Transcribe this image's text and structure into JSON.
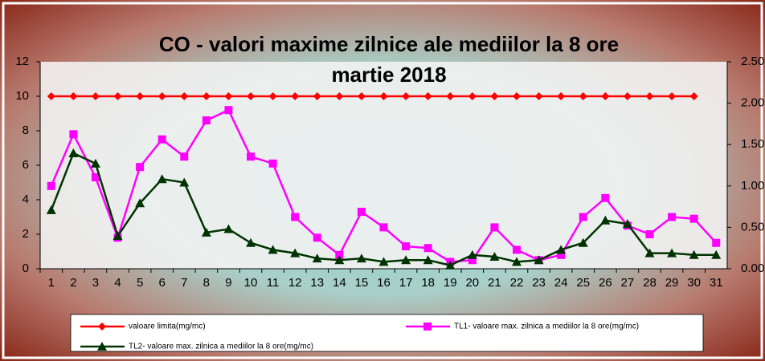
{
  "chart_data": {
    "type": "line",
    "title": "CO - valori maxime zilnice ale mediilor la 8 ore",
    "subtitle": "martie 2018",
    "categories": [
      "1",
      "2",
      "3",
      "4",
      "5",
      "6",
      "7",
      "8",
      "9",
      "10",
      "11",
      "12",
      "13",
      "14",
      "15",
      "16",
      "17",
      "18",
      "19",
      "20",
      "21",
      "22",
      "23",
      "24",
      "25",
      "26",
      "27",
      "28",
      "29",
      "30",
      "31"
    ],
    "series": [
      {
        "name": "valoare limita(mg/mc)",
        "color": "#ff0000",
        "marker": "diamond",
        "values": [
          10,
          10,
          10,
          10,
          10,
          10,
          10,
          10,
          10,
          10,
          10,
          10,
          10,
          10,
          10,
          10,
          10,
          10,
          10,
          10,
          10,
          10,
          10,
          10,
          10,
          10,
          10,
          10,
          10,
          10,
          null
        ]
      },
      {
        "name": "TL1- valoare max. zilnica a mediilor la 8 ore(mg/mc)",
        "color": "#ff00ff",
        "marker": "square",
        "values": [
          4.8,
          7.8,
          5.3,
          1.8,
          5.9,
          7.5,
          6.5,
          8.6,
          9.2,
          6.5,
          6.1,
          3.0,
          1.8,
          0.8,
          3.3,
          2.4,
          1.3,
          1.2,
          0.4,
          0.5,
          2.4,
          1.1,
          0.5,
          0.8,
          3.0,
          4.1,
          2.5,
          2.0,
          3.0,
          2.9,
          1.5
        ]
      },
      {
        "name": "TL2- valoare max. zilnica a mediilor la 8 ore(mg/mc)",
        "color": "#003300",
        "marker": "triangle",
        "values": [
          3.4,
          6.7,
          6.1,
          1.9,
          3.8,
          5.2,
          5.0,
          2.1,
          2.3,
          1.5,
          1.1,
          0.9,
          0.6,
          0.5,
          0.6,
          0.4,
          0.5,
          0.5,
          0.2,
          0.8,
          0.7,
          0.4,
          0.5,
          1.1,
          1.5,
          2.8,
          2.6,
          0.9,
          0.9,
          0.8,
          0.8
        ]
      }
    ],
    "ylim": [
      0,
      12
    ],
    "yticks": [
      0,
      2,
      4,
      6,
      8,
      10,
      12
    ],
    "y2lim": [
      0,
      2.5
    ],
    "y2ticks": [
      {
        "value": 0,
        "label": "0.00"
      },
      {
        "value": 0.5,
        "label": "0.50"
      },
      {
        "value": 1,
        "label": "1.00"
      },
      {
        "value": 1.5,
        "label": "1.50"
      },
      {
        "value": 2,
        "label": "2.00"
      },
      {
        "value": 2.5,
        "label": "2.50"
      }
    ],
    "grid": false,
    "legend": "bottom"
  }
}
